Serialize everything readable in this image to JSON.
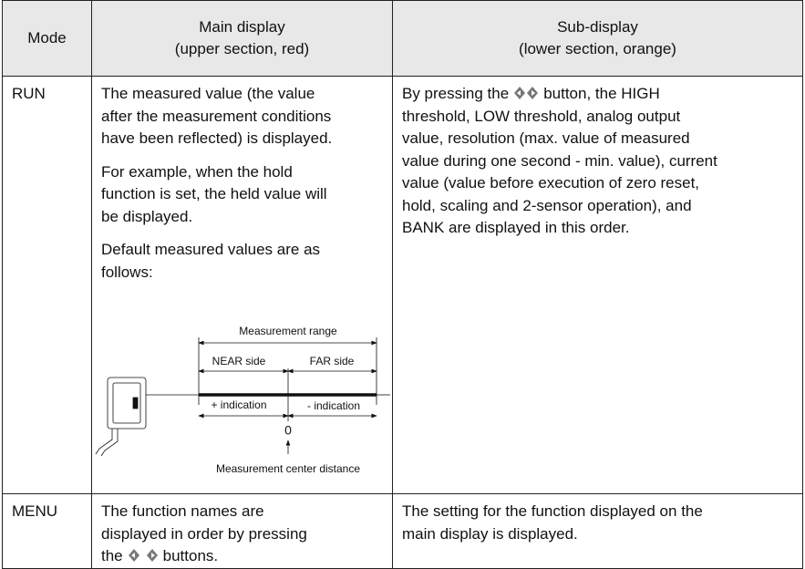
{
  "table": {
    "header": [
      [
        "Mode"
      ],
      [
        "Main display",
        "(upper section, red)"
      ],
      [
        "Sub-display",
        "(lower section, orange)"
      ]
    ],
    "rows": [
      {
        "mode": "RUN",
        "main": [
          [
            "The measured value (the value",
            "after the measurement conditions",
            "have been reflected) is displayed."
          ],
          [
            "For example, when the hold",
            "function is set, the held value will",
            "be displayed."
          ],
          [
            "Default measured values are as",
            "follows:"
          ]
        ],
        "diagram": {
          "range": "Measurement range",
          "near": "NEAR side",
          "far": "FAR side",
          "plus": "+ indication",
          "minus": "- indication",
          "zero": "0",
          "center": "Measurement center distance"
        },
        "sub_before": "By pressing the",
        "sub_after": "button, the HIGH",
        "sub_rest": [
          "threshold, LOW threshold, analog output",
          "value, resolution (max. value of measured",
          "value during one second - min. value), current",
          "value (value before execution of zero reset,",
          "hold, scaling and 2-sensor operation), and",
          "BANK are displayed in this order."
        ]
      },
      {
        "mode": "MENU",
        "main": [
          "The function names are",
          "displayed in order by pressing"
        ],
        "main_before": "the",
        "main_after": "buttons.",
        "sub": [
          "The setting for the function displayed on the",
          "main display is displayed."
        ]
      }
    ]
  }
}
